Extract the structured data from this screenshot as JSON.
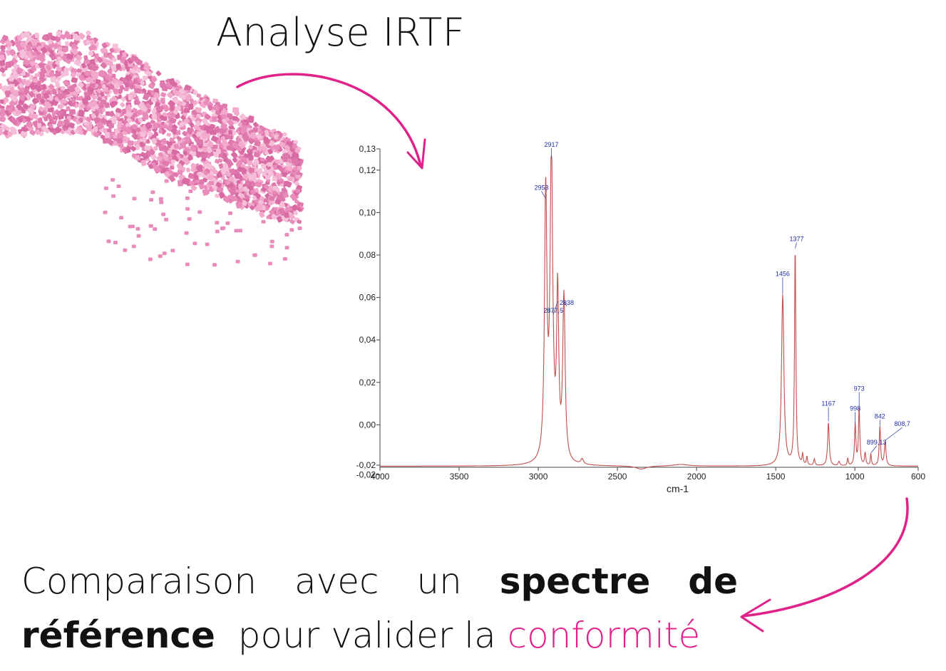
{
  "title": "Analyse IRTF",
  "caption": {
    "words_line1": [
      "Comparaison",
      "avec",
      "un",
      "spectre",
      "de"
    ],
    "bold_line1": [
      false,
      false,
      false,
      true,
      true
    ],
    "line2_bold": "référence",
    "line2_plain": "pour valider la",
    "line2_accent": "conformité"
  },
  "colors": {
    "accent": "#e0218a",
    "pellets": "#e98cbc",
    "spectrum_line": "#c0504d",
    "peak_label": "#1f2fa8"
  },
  "chart_data": {
    "type": "line",
    "title": "",
    "xlabel": "cm-1",
    "ylabel": "",
    "xlim": [
      4000,
      600
    ],
    "ylim": [
      -0.02,
      0.13
    ],
    "x_ticks": [
      4000,
      3500,
      3000,
      2500,
      2000,
      1500,
      1000,
      600
    ],
    "y_ticks": [
      "0,13",
      "0,12",
      "0,10",
      "0,08",
      "0,06",
      "0,04",
      "0,02",
      "0,00",
      "-0,02",
      "-0,02"
    ],
    "y_tick_values": [
      0.13,
      0.12,
      0.1,
      0.08,
      0.06,
      0.04,
      0.02,
      0.0,
      -0.019,
      -0.0235
    ],
    "baseline": -0.0195,
    "peaks": [
      {
        "x": 2953,
        "y": 0.106,
        "label": "2953"
      },
      {
        "x": 2917,
        "y": 0.125,
        "label": "2917"
      },
      {
        "x": 2877.5,
        "y": 0.0575,
        "label": "2877,5"
      },
      {
        "x": 2838,
        "y": 0.0575,
        "label": "2838"
      },
      {
        "x": 1456,
        "y": 0.061,
        "label": "1456"
      },
      {
        "x": 1377,
        "y": 0.0825,
        "label": "1377"
      },
      {
        "x": 1167,
        "y": 0.001,
        "label": "1167"
      },
      {
        "x": 998,
        "y": 0.0,
        "label": "998"
      },
      {
        "x": 973,
        "y": 0.008,
        "label": "973"
      },
      {
        "x": 899.13,
        "y": -0.014,
        "label": "899,13"
      },
      {
        "x": 842,
        "y": -0.001,
        "label": "842"
      },
      {
        "x": 808.7,
        "y": -0.008,
        "label": "808,7"
      }
    ]
  }
}
